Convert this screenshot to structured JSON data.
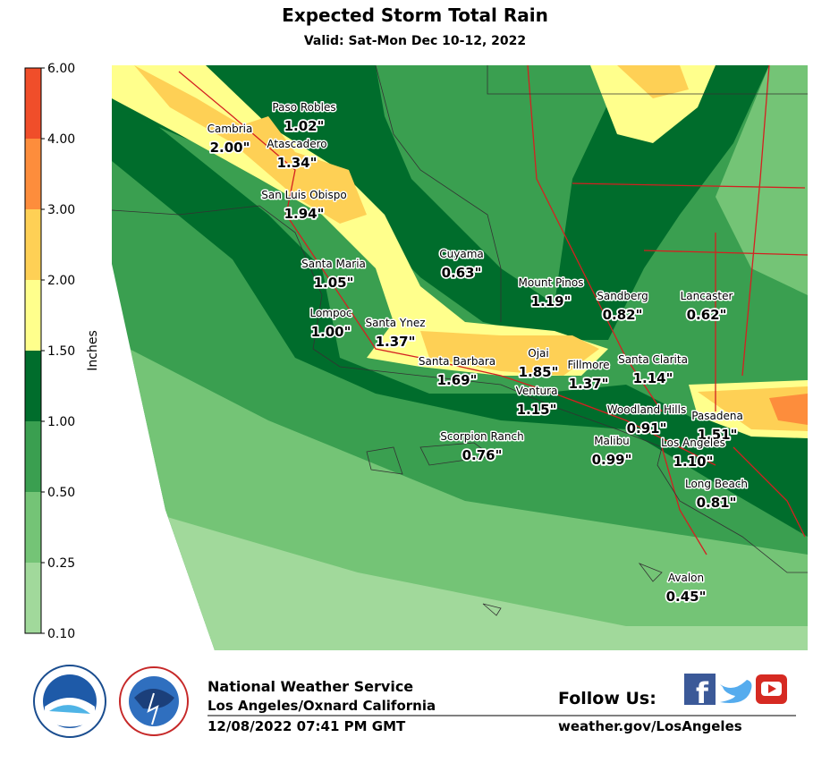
{
  "title": "Expected Storm Total Rain",
  "subtitle": "Valid: Sat-Mon Dec 10-12, 2022",
  "legend": {
    "label": "Inches",
    "ticks": [
      {
        "value": 0.1,
        "label": "0.10"
      },
      {
        "value": 0.25,
        "label": "0.25"
      },
      {
        "value": 0.5,
        "label": "0.50"
      },
      {
        "value": 1,
        "label": "1.00"
      },
      {
        "value": 1.5,
        "label": "1.50"
      },
      {
        "value": 2,
        "label": "2.00"
      },
      {
        "value": 3,
        "label": "3.00"
      },
      {
        "value": 4,
        "label": "4.00"
      },
      {
        "value": 6,
        "label": "6.00"
      }
    ],
    "colors": [
      "#a1d99b",
      "#74c476",
      "#3a9f50",
      "#006d2c",
      "#ffff8c",
      "#fed055",
      "#fd8d3c",
      "#f04e2a"
    ]
  },
  "locations": [
    {
      "name": "Paso Robles",
      "rain": "1.02\""
    },
    {
      "name": "Cambria",
      "rain": "2.00\""
    },
    {
      "name": "Atascadero",
      "rain": "1.34\""
    },
    {
      "name": "San Luis Obispo",
      "rain": "1.94\""
    },
    {
      "name": "Cuyama",
      "rain": "0.63\""
    },
    {
      "name": "Santa Maria",
      "rain": "1.05\""
    },
    {
      "name": "Mount Pinos",
      "rain": "1.19\""
    },
    {
      "name": "Sandberg",
      "rain": "0.82\""
    },
    {
      "name": "Lancaster",
      "rain": "0.62\""
    },
    {
      "name": "Lompoc",
      "rain": "1.00\""
    },
    {
      "name": "Santa Ynez",
      "rain": "1.37\""
    },
    {
      "name": "Santa Barbara",
      "rain": "1.69\""
    },
    {
      "name": "Ojai",
      "rain": "1.85\""
    },
    {
      "name": "Fillmore",
      "rain": "1.37\""
    },
    {
      "name": "Santa Clarita",
      "rain": "1.14\""
    },
    {
      "name": "Ventura",
      "rain": "1.15\""
    },
    {
      "name": "Woodland Hills",
      "rain": "0.91\""
    },
    {
      "name": "Pasadena",
      "rain": "1.51\""
    },
    {
      "name": "Scorpion Ranch",
      "rain": "0.76\""
    },
    {
      "name": "Malibu",
      "rain": "0.99\""
    },
    {
      "name": "Los Angeles",
      "rain": "1.10\""
    },
    {
      "name": "Long Beach",
      "rain": "0.81\""
    },
    {
      "name": "Avalon",
      "rain": "0.45\""
    }
  ],
  "footer": {
    "agency": "National Weather Service",
    "office": "Los Angeles/Oxnard California",
    "timestamp": "12/08/2022 07:41 PM GMT",
    "follow": "Follow Us:",
    "website": "weather.gov/LosAngeles"
  }
}
